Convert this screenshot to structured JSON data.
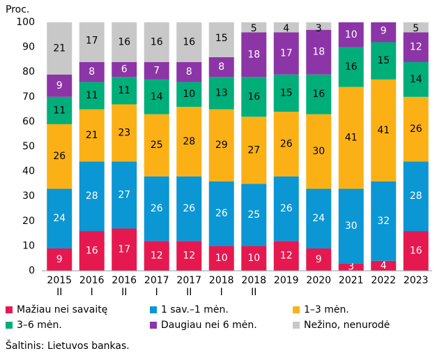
{
  "chart_data": {
    "type": "stacked_bar",
    "y_label": "Proc.",
    "source": "Šaltinis: Lietuvos bankas.",
    "categories": [
      "2015\nII",
      "2016\nI",
      "2016\nII",
      "2017\nI",
      "2017\nII",
      "2018\nI",
      "2018\nII",
      "2019",
      "2020",
      "2021",
      "2022",
      "2023"
    ],
    "series": [
      {
        "name": "Mažiau nei savaitę",
        "color": "#e5194f",
        "label_color": "#ffffff",
        "values": [
          9,
          16,
          17,
          12,
          12,
          10,
          10,
          12,
          9,
          3,
          4,
          16
        ]
      },
      {
        "name": "1 sav.–1 mėn.",
        "color": "#0b96d4",
        "label_color": "#ffffff",
        "values": [
          24,
          28,
          27,
          26,
          26,
          26,
          25,
          26,
          24,
          30,
          32,
          28
        ]
      },
      {
        "name": "1–3 mėn.",
        "color": "#fbb116",
        "label_color": "#000000",
        "values": [
          26,
          21,
          23,
          25,
          28,
          29,
          27,
          26,
          30,
          41,
          41,
          26
        ]
      },
      {
        "name": "3–6 mėn.",
        "color": "#00ae7a",
        "label_color": "#000000",
        "values": [
          11,
          11,
          11,
          14,
          10,
          13,
          16,
          15,
          16,
          16,
          15,
          14
        ]
      },
      {
        "name": "Daugiau nei 6 mėn.",
        "color": "#8c35a7",
        "label_color": "#ffffff",
        "values": [
          9,
          8,
          6,
          7,
          8,
          8,
          18,
          17,
          18,
          10,
          9,
          12
        ]
      },
      {
        "name": "Nežino, nenurodė",
        "color": "#c8c8c8",
        "label_color": "#000000",
        "values": [
          21,
          17,
          16,
          16,
          16,
          15,
          5,
          4,
          3,
          null,
          null,
          5
        ]
      }
    ],
    "ylim": [
      0,
      100
    ],
    "yticks": [
      0,
      10,
      20,
      30,
      40,
      50,
      60,
      70,
      80,
      90,
      100
    ],
    "grid": false
  }
}
